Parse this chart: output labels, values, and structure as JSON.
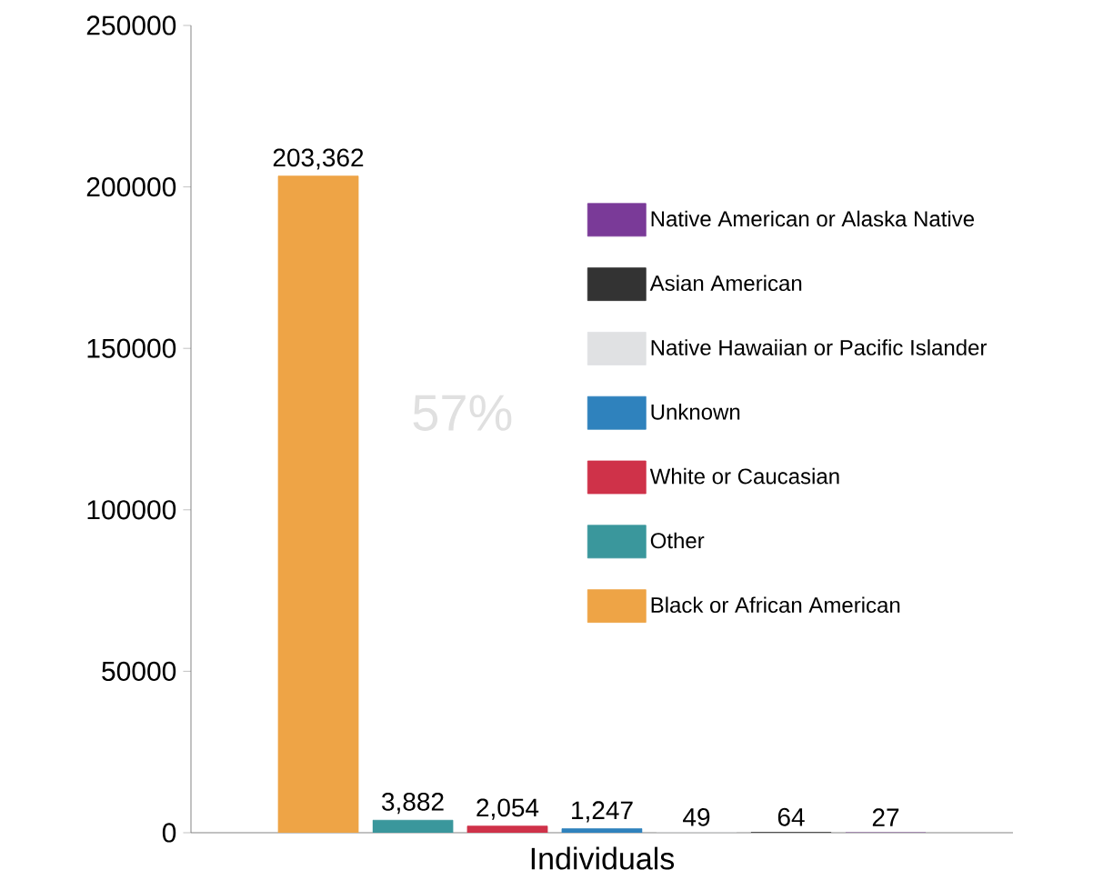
{
  "chart_data": {
    "type": "bar",
    "categories": [
      "Individuals"
    ],
    "series": [
      {
        "name": "Black or African American",
        "color": "#eea446",
        "values": [
          203362
        ],
        "value_labels": [
          "203,362"
        ]
      },
      {
        "name": "Other",
        "color": "#3a979c",
        "values": [
          3882
        ],
        "value_labels": [
          "3,882"
        ]
      },
      {
        "name": "White or Caucasian",
        "color": "#cf3249",
        "values": [
          2054
        ],
        "value_labels": [
          "2,054"
        ]
      },
      {
        "name": "Unknown",
        "color": "#2f82bd",
        "values": [
          1247
        ],
        "value_labels": [
          "1,247"
        ]
      },
      {
        "name": "Native Hawaiian or Pacific Islander",
        "color": "#e0e1e3",
        "values": [
          49
        ],
        "value_labels": [
          "49"
        ]
      },
      {
        "name": "Asian American",
        "color": "#333333",
        "values": [
          64
        ],
        "value_labels": [
          "64"
        ]
      },
      {
        "name": "Native American or Alaska Native",
        "color": "#7a3a98",
        "values": [
          27
        ],
        "value_labels": [
          "27"
        ]
      }
    ],
    "ylim": [
      0,
      250000
    ],
    "yticks": [
      0,
      50000,
      100000,
      150000,
      200000,
      250000
    ],
    "grid": false,
    "legend": "right",
    "annotations": [
      "57%"
    ]
  }
}
